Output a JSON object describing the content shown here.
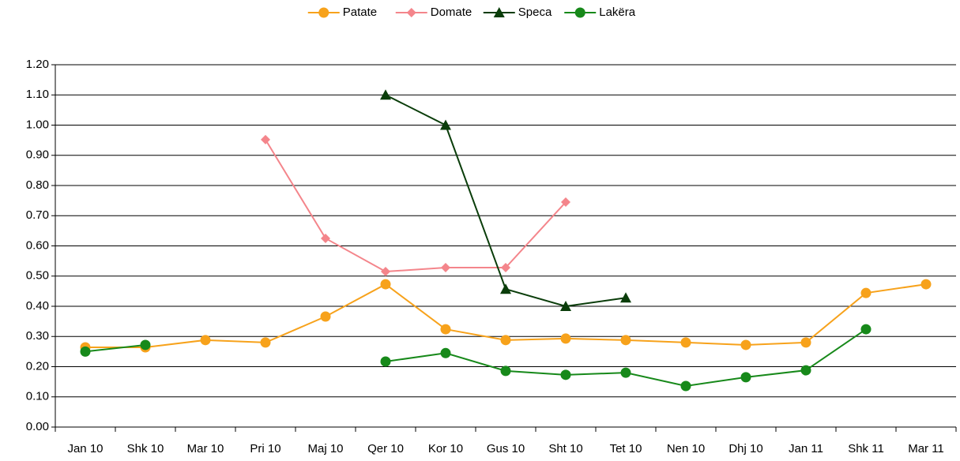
{
  "chart_data": {
    "type": "line",
    "categories": [
      "Jan 10",
      "Shk 10",
      "Mar 10",
      "Pri 10",
      "Maj 10",
      "Qer 10",
      "Kor 10",
      "Gus 10",
      "Sht 10",
      "Tet 10",
      "Nen 10",
      "Dhj 10",
      "Jan 11",
      "Shk 11",
      "Mar 11"
    ],
    "series": [
      {
        "name": "Patate",
        "color": "#f7a21b",
        "marker": "circle",
        "values": [
          0.264,
          0.264,
          0.288,
          0.28,
          0.366,
          0.473,
          0.324,
          0.288,
          0.293,
          0.288,
          0.28,
          0.272,
          0.28,
          0.444,
          0.473
        ]
      },
      {
        "name": "Domate",
        "color": "#f4858b",
        "marker": "diamond",
        "values": [
          null,
          null,
          null,
          0.952,
          0.625,
          0.515,
          0.528,
          0.528,
          0.745,
          null,
          null,
          null,
          null,
          null,
          null
        ]
      },
      {
        "name": "Speca",
        "color": "#0a3d0a",
        "marker": "triangle",
        "values": [
          null,
          null,
          null,
          null,
          null,
          1.1,
          1.0,
          0.457,
          0.4,
          0.428,
          null,
          null,
          null,
          null,
          null
        ]
      },
      {
        "name": "Lakëra",
        "color": "#17891a",
        "marker": "circle",
        "values": [
          0.25,
          0.272,
          null,
          null,
          null,
          0.217,
          0.245,
          0.186,
          0.173,
          0.18,
          0.136,
          0.165,
          0.188,
          0.324,
          null
        ]
      }
    ],
    "ylim": [
      0,
      1.2
    ],
    "yticks": [
      {
        "value": 0,
        "label": "0.00"
      },
      {
        "value": 0.1,
        "label": "0.10"
      },
      {
        "value": 0.2,
        "label": "0.20"
      },
      {
        "value": 0.3,
        "label": "0.30"
      },
      {
        "value": 0.4,
        "label": "0.40"
      },
      {
        "value": 0.5,
        "label": "0.50"
      },
      {
        "value": 0.6,
        "label": "0.60"
      },
      {
        "value": 0.7,
        "label": "0.70"
      },
      {
        "value": 0.8,
        "label": "0.80"
      },
      {
        "value": 0.9,
        "label": "0.90"
      },
      {
        "value": 1.0,
        "label": "1.00"
      },
      {
        "value": 1.1,
        "label": "1.10"
      },
      {
        "value": 1.2,
        "label": "1.20"
      }
    ],
    "grid": true,
    "legend": "top"
  }
}
